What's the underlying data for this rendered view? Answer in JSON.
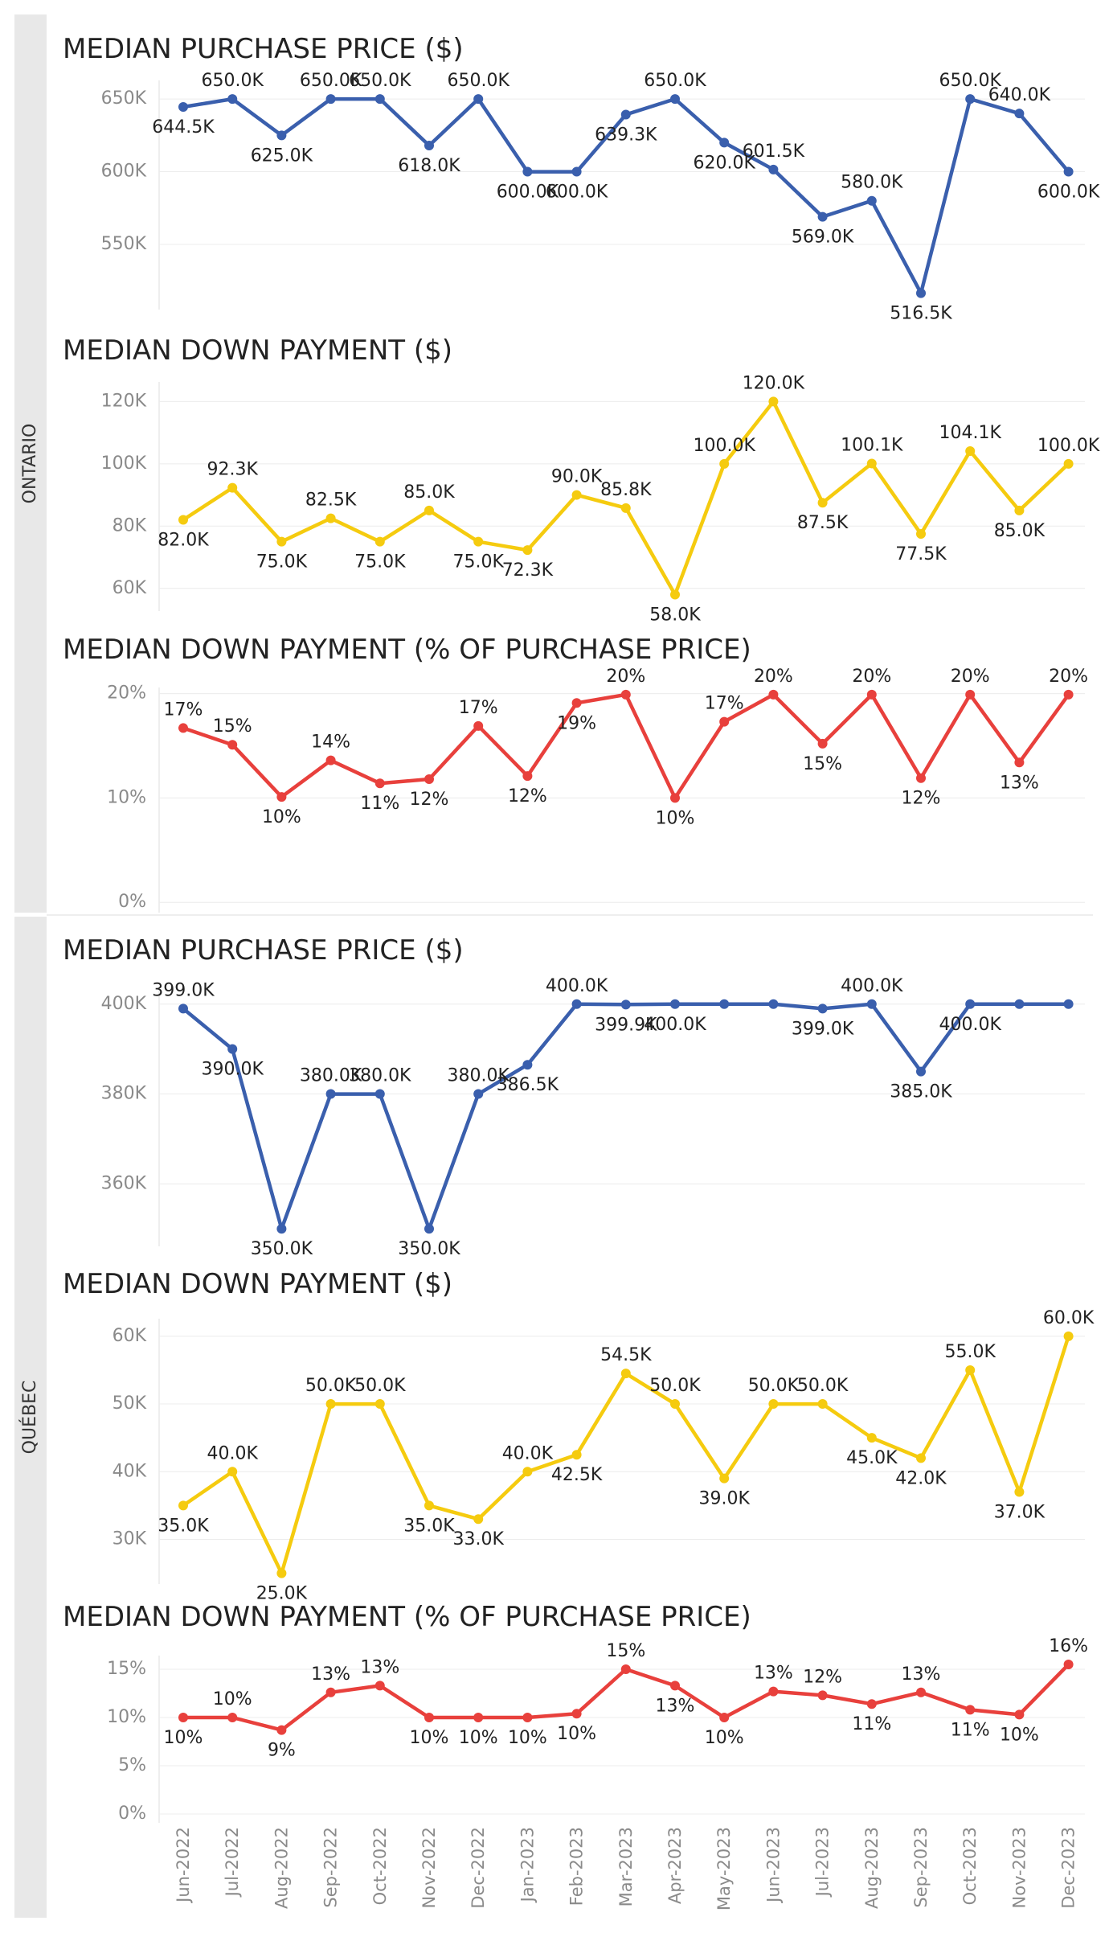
{
  "colors": {
    "price": "#3a5fad",
    "down": "#f5cb0f",
    "pct": "#e8403c",
    "band": "#e8e8e8",
    "grid": "#ececec"
  },
  "months": [
    "Jun-2022",
    "Jul-2022",
    "Aug-2022",
    "Sep-2022",
    "Oct-2022",
    "Nov-2022",
    "Dec-2022",
    "Jan-2023",
    "Feb-2023",
    "Mar-2023",
    "Apr-2023",
    "May-2023",
    "Jun-2023",
    "Jul-2023",
    "Aug-2023",
    "Sep-2023",
    "Oct-2023",
    "Nov-2023",
    "Dec-2023"
  ],
  "regions": [
    {
      "name": "ONTARIO"
    },
    {
      "name": "QUÉBEC"
    }
  ],
  "chart_data": [
    {
      "type": "line",
      "region": "ONTARIO",
      "title": "MEDIAN PURCHASE PRICE ($)",
      "color_key": "price",
      "ylim": [
        508000,
        660000
      ],
      "yticks": [
        550000,
        600000,
        650000
      ],
      "ytick_labels": [
        "550K",
        "600K",
        "650K"
      ],
      "values": [
        644500,
        650000,
        625000,
        650000,
        650000,
        618000,
        650000,
        600000,
        600000,
        639300,
        650000,
        620000,
        601500,
        569000,
        580000,
        516500,
        650000,
        640000,
        600000
      ],
      "labels": [
        "644.5K",
        "650.0K",
        "625.0K",
        "650.0K",
        "650.0K",
        "618.0K",
        "650.0K",
        "600.0K",
        "600.0K",
        "639.3K",
        "650.0K",
        "620.0K",
        "601.5K",
        "569.0K",
        "580.0K",
        "516.5K",
        "650.0K",
        "640.0K",
        "600.0K"
      ],
      "label_pos": [
        "below",
        "above",
        "below",
        "above",
        "above",
        "below",
        "above",
        "below",
        "below",
        "below",
        "above",
        "below",
        "above",
        "below",
        "above",
        "below",
        "above",
        "above",
        "below"
      ],
      "grid": true
    },
    {
      "type": "line",
      "region": "ONTARIO",
      "title": "MEDIAN DOWN PAYMENT ($)",
      "color_key": "down",
      "ylim": [
        54000,
        125000
      ],
      "yticks": [
        60000,
        80000,
        100000,
        120000
      ],
      "ytick_labels": [
        "60K",
        "80K",
        "100K",
        "120K"
      ],
      "values": [
        82000,
        92300,
        75000,
        82500,
        75000,
        85000,
        75000,
        72300,
        90000,
        85800,
        58000,
        100000,
        120000,
        87500,
        100100,
        77500,
        104100,
        85000,
        100000
      ],
      "labels": [
        "82.0K",
        "92.3K",
        "75.0K",
        "82.5K",
        "75.0K",
        "85.0K",
        "75.0K",
        "72.3K",
        "90.0K",
        "85.8K",
        "58.0K",
        "100.0K",
        "120.0K",
        "87.5K",
        "100.1K",
        "77.5K",
        "104.1K",
        "85.0K",
        "100.0K"
      ],
      "label_pos": [
        "below",
        "above",
        "below",
        "above",
        "below",
        "above",
        "below",
        "below",
        "above",
        "above",
        "below",
        "above",
        "above",
        "below",
        "above",
        "below",
        "above",
        "below",
        "above"
      ],
      "grid": true
    },
    {
      "type": "line",
      "region": "ONTARIO",
      "title": "MEDIAN DOWN PAYMENT (% OF PURCHASE PRICE)",
      "color_key": "pct",
      "ylim": [
        -0.6,
        20.2
      ],
      "yticks": [
        0,
        10,
        20
      ],
      "ytick_labels": [
        "0%",
        "10%",
        "20%"
      ],
      "values": [
        16.7,
        15.1,
        10.1,
        13.6,
        11.4,
        11.8,
        16.9,
        12.1,
        19.1,
        19.9,
        10.0,
        17.3,
        19.9,
        15.2,
        19.9,
        11.9,
        19.9,
        13.4,
        19.9
      ],
      "labels": [
        "17%",
        "15%",
        "10%",
        "14%",
        "11%",
        "12%",
        "17%",
        "12%",
        "19%",
        "20%",
        "10%",
        "17%",
        "20%",
        "15%",
        "20%",
        "12%",
        "20%",
        "13%",
        "20%"
      ],
      "label_pos": [
        "above",
        "above",
        "below",
        "above",
        "below",
        "below",
        "above",
        "below",
        "below",
        "above",
        "below",
        "above",
        "above",
        "below",
        "above",
        "below",
        "above",
        "below",
        "above"
      ],
      "grid": true
    },
    {
      "type": "line",
      "region": "QUÉBEC",
      "title": "MEDIAN PURCHASE PRICE ($)",
      "color_key": "price",
      "ylim": [
        347000,
        403000
      ],
      "yticks": [
        360000,
        380000,
        400000
      ],
      "ytick_labels": [
        "360K",
        "380K",
        "400K"
      ],
      "values": [
        399000,
        390000,
        350000,
        380000,
        380000,
        350000,
        380000,
        386500,
        400000,
        399900,
        400000,
        400000,
        400000,
        399000,
        400000,
        385000,
        400000,
        400000,
        400000
      ],
      "labels": [
        "399.0K",
        "390.0K",
        "350.0K",
        "380.0K",
        "380.0K",
        "350.0K",
        "380.0K",
        "386.5K",
        "400.0K",
        "399.9K",
        "400.0K",
        "",
        "",
        "399.0K",
        "400.0K",
        "385.0K",
        "400.0K",
        "",
        ""
      ],
      "label_pos": [
        "above",
        "below",
        "below",
        "above",
        "above",
        "below",
        "above",
        "below",
        "above",
        "below",
        "below",
        "below",
        "below",
        "below",
        "above",
        "below",
        "below",
        "below",
        "below"
      ],
      "grid": true
    },
    {
      "type": "line",
      "region": "QUÉBEC",
      "title": "MEDIAN DOWN PAYMENT ($)",
      "color_key": "down",
      "ylim": [
        24000,
        62000
      ],
      "yticks": [
        30000,
        40000,
        50000,
        60000
      ],
      "ytick_labels": [
        "30K",
        "40K",
        "50K",
        "60K"
      ],
      "values": [
        35000,
        40000,
        25000,
        50000,
        50000,
        35000,
        33000,
        40000,
        42500,
        54500,
        50000,
        39000,
        50000,
        50000,
        45000,
        42000,
        55000,
        37000,
        60000
      ],
      "labels": [
        "35.0K",
        "40.0K",
        "25.0K",
        "50.0K",
        "50.0K",
        "35.0K",
        "33.0K",
        "40.0K",
        "42.5K",
        "54.5K",
        "50.0K",
        "39.0K",
        "50.0K",
        "50.0K",
        "45.0K",
        "42.0K",
        "55.0K",
        "37.0K",
        "60.0K"
      ],
      "label_pos": [
        "below",
        "above",
        "below",
        "above",
        "above",
        "below",
        "below",
        "above",
        "below",
        "above",
        "above",
        "below",
        "above",
        "above",
        "below",
        "below",
        "above",
        "below",
        "above"
      ],
      "grid": true
    },
    {
      "type": "line",
      "region": "QUÉBEC",
      "title": "MEDIAN DOWN PAYMENT (% OF PURCHASE PRICE)",
      "color_key": "pct",
      "ylim": [
        -0.5,
        16.0
      ],
      "yticks": [
        0,
        5,
        10,
        15
      ],
      "ytick_labels": [
        "0%",
        "5%",
        "10%",
        "15%"
      ],
      "values": [
        10.0,
        10.0,
        8.7,
        12.6,
        13.3,
        10.0,
        10.0,
        10.0,
        10.4,
        15.0,
        13.3,
        10.0,
        12.7,
        12.3,
        11.4,
        12.6,
        10.8,
        10.3,
        15.5
      ],
      "labels": [
        "10%",
        "10%",
        "9%",
        "13%",
        "13%",
        "10%",
        "10%",
        "10%",
        "10%",
        "15%",
        "13%",
        "10%",
        "13%",
        "12%",
        "11%",
        "13%",
        "11%",
        "10%",
        "16%"
      ],
      "label_pos": [
        "below",
        "above",
        "below",
        "above",
        "above",
        "below",
        "below",
        "below",
        "below",
        "above",
        "below",
        "below",
        "above",
        "above",
        "below",
        "above",
        "below",
        "below",
        "above"
      ],
      "grid": true
    }
  ]
}
